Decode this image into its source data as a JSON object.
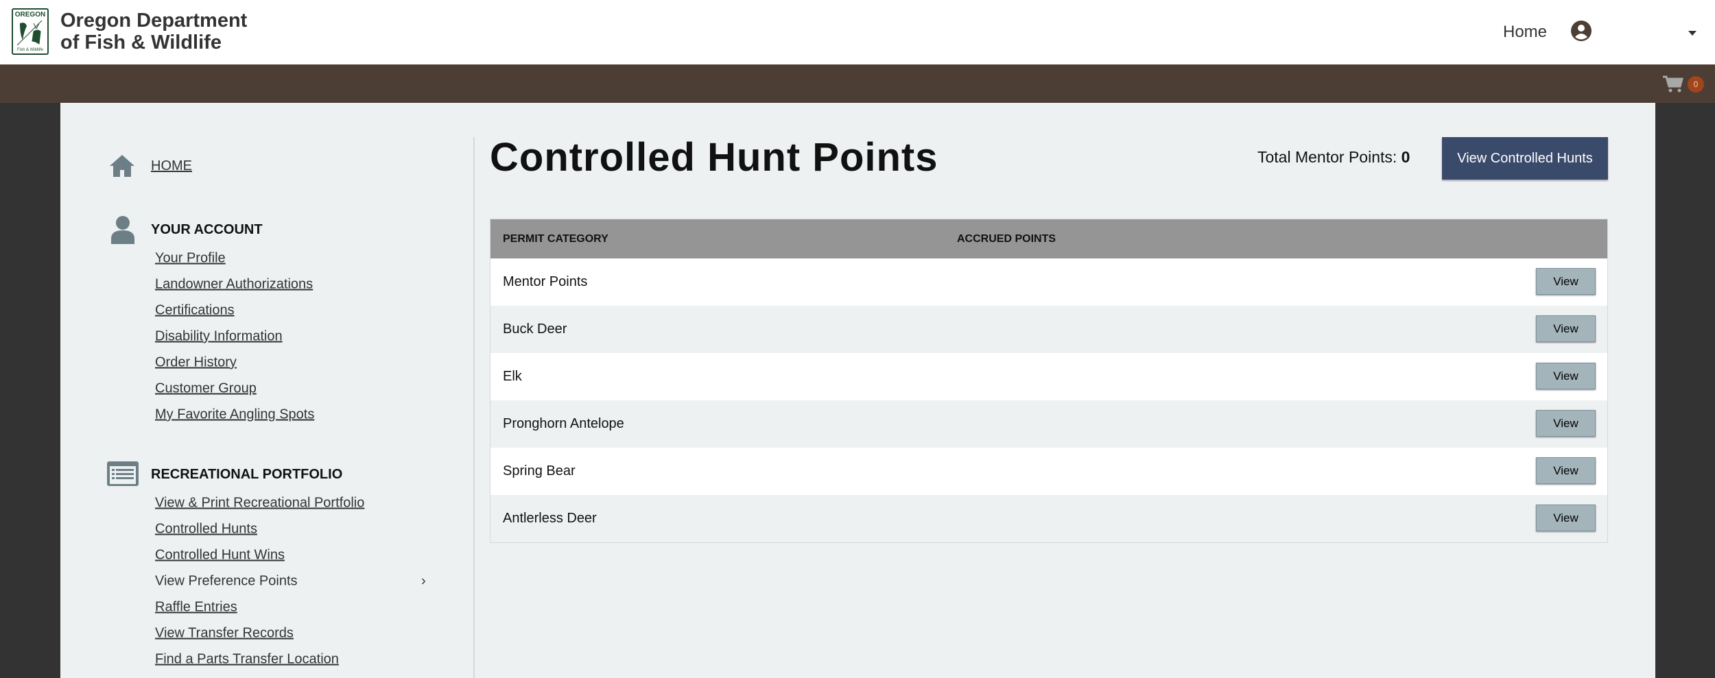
{
  "header": {
    "logo_text_top": "OREGON",
    "logo_text_bottom": "Fish & Wildlife",
    "brand_line1": "Oregon Department",
    "brand_line2": "of Fish & Wildlife",
    "nav_home": "Home",
    "user_icon": "user-circle-icon",
    "cart_count": "0"
  },
  "sidebar": {
    "home": "HOME",
    "account": {
      "heading": "YOUR ACCOUNT",
      "links": [
        "Your Profile",
        "Landowner Authorizations",
        "Certifications",
        "Disability Information",
        "Order History",
        "Customer Group",
        "My Favorite Angling Spots"
      ]
    },
    "portfolio": {
      "heading": "RECREATIONAL PORTFOLIO",
      "links": [
        "View & Print Recreational Portfolio",
        "Controlled Hunts",
        "Controlled Hunt Wins",
        "View Preference Points",
        "Raffle Entries",
        "View Transfer Records",
        "Find a Parts Transfer Location"
      ],
      "chevron": "›"
    }
  },
  "main": {
    "title": "Controlled Hunt Points",
    "mentor_label": "Total Mentor Points:",
    "mentor_value": "0",
    "view_hunts_button": "View Controlled Hunts",
    "table": {
      "headers": [
        "PERMIT CATEGORY",
        "ACCRUED POINTS"
      ],
      "rows": [
        {
          "category": "Mentor Points",
          "button": "View"
        },
        {
          "category": "Buck Deer",
          "button": "View"
        },
        {
          "category": "Elk",
          "button": "View"
        },
        {
          "category": "Pronghorn Antelope",
          "button": "View"
        },
        {
          "category": "Spring Bear",
          "button": "View"
        },
        {
          "category": "Antlerless Deer",
          "button": "View"
        }
      ]
    }
  },
  "colors": {
    "brown_bar": "#4d3e35",
    "primary_button": "#3a4a6b",
    "view_button": "#a3b5bb",
    "cart_badge": "#a0451c"
  }
}
